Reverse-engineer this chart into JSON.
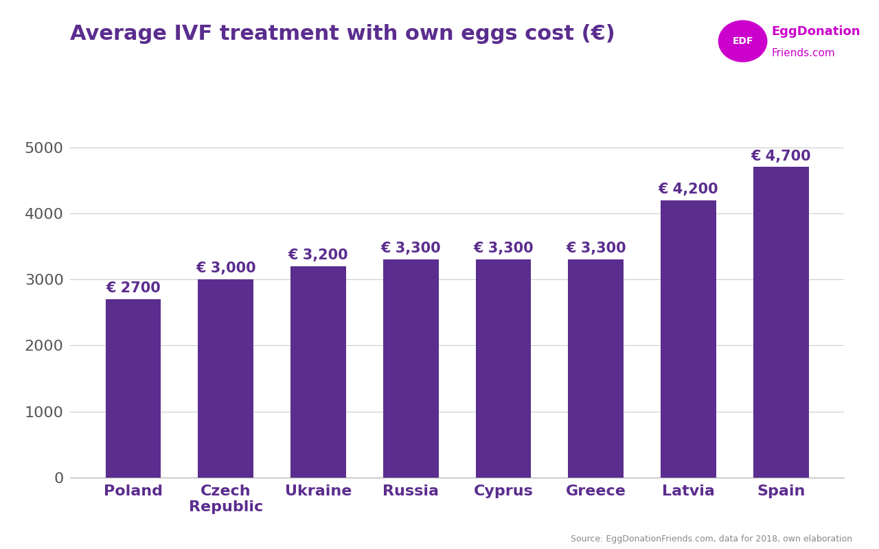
{
  "title": "Average IVF treatment with own eggs cost (€)",
  "categories": [
    "Poland",
    "Czech\nRepublic",
    "Ukraine",
    "Russia",
    "Cyprus",
    "Greece",
    "Latvia",
    "Spain"
  ],
  "values": [
    2700,
    3000,
    3200,
    3300,
    3300,
    3300,
    4200,
    4700
  ],
  "labels": [
    "€ 2700",
    "€ 3,000",
    "€ 3,200",
    "€ 3,300",
    "€ 3,300",
    "€ 3,300",
    "€ 4,200",
    "€ 4,700"
  ],
  "bar_color": "#5b2d8e",
  "background_color": "#ffffff",
  "ylim": [
    0,
    5400
  ],
  "yticks": [
    0,
    1000,
    2000,
    3000,
    4000,
    5000
  ],
  "title_fontsize": 22,
  "tick_fontsize": 16,
  "label_fontsize": 15,
  "source_text": "Source: EggDonationFriends.com, data for 2018, own elaboration",
  "logo_circle_color": "#cc00cc",
  "logo_text_color": "#cc00cc",
  "logo_edf_text": "EDF",
  "logo_line1": "EggDonation",
  "logo_line2": "Friends.com",
  "grid_color": "#cccccc",
  "axis_color": "#aaaaaa",
  "title_color": "#5b2d8e",
  "bar_label_color": "#5b2d8e"
}
